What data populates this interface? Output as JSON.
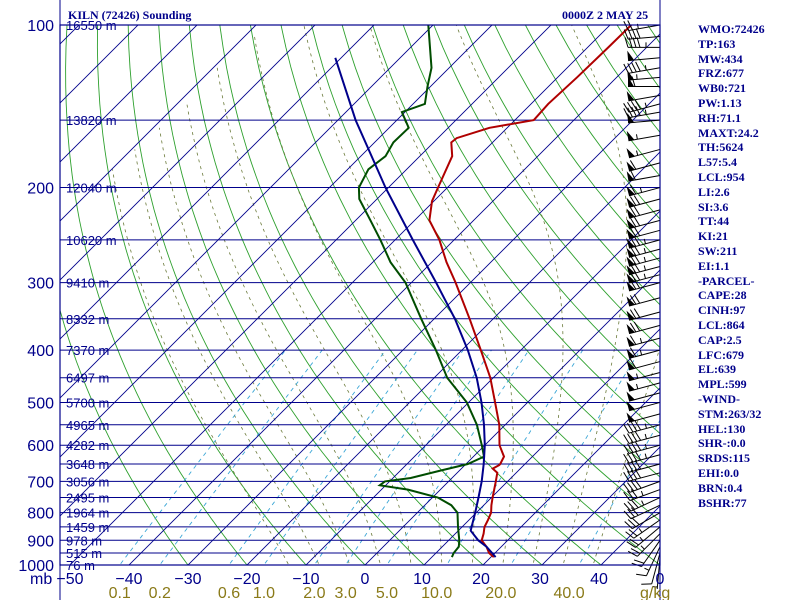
{
  "header": {
    "station": "KILN (72426) Sounding",
    "time": "0000Z  2 MAY 25"
  },
  "stats": [
    "WMO:72426",
    "TP:163",
    "MW:434",
    "FRZ:677",
    "WB0:721",
    "PW:1.13",
    "RH:71.1",
    "MAXT:24.2",
    "TH:5624",
    "L57:5.4",
    "LCL:954",
    "LI:2.6",
    "SI:3.6",
    "TT:44",
    "KI:21",
    "SW:211",
    "EI:1.1",
    "-PARCEL-",
    "CAPE:28",
    "CINH:97",
    "LCL:864",
    "CAP:2.5",
    "LFC:679",
    "EL:639",
    "MPL:599",
    "-WIND-",
    "STM:263/32",
    "HEL:130",
    "SHR-:0.0",
    "SRDS:115",
    "EHI:0.0",
    "BRN:0.4",
    "BSHR:77"
  ],
  "chart_data": {
    "type": "line",
    "title": "",
    "xlabel": "",
    "ylabel": "mb",
    "x_unit": "g/kg",
    "y_scale": "log-pressure",
    "ylim": [
      1000,
      100
    ],
    "xlim": [
      -50,
      50
    ],
    "pressure_ticks": [
      100,
      200,
      300,
      400,
      500,
      600,
      700,
      800,
      900,
      1000
    ],
    "temperature_ticks": [
      -50,
      -40,
      -30,
      -20,
      -10,
      0,
      10,
      20,
      30,
      40
    ],
    "mixing_ratio_ticks": [
      "0.1",
      "0.2",
      "0.6",
      "1.0",
      "2.0",
      "3.0",
      "5.0",
      "10.0",
      "20.0",
      "40.0"
    ],
    "mixing_ratio_values": [
      0.1,
      0.2,
      0.6,
      1.0,
      2.0,
      3.0,
      5.0,
      10.0,
      20.0,
      40.0
    ],
    "height_labels": [
      {
        "p": 100,
        "label": "16550 m"
      },
      {
        "p": 150,
        "label": "13820 m"
      },
      {
        "p": 200,
        "label": "12040 m"
      },
      {
        "p": 250,
        "label": "10620 m"
      },
      {
        "p": 300,
        "label": "9410 m"
      },
      {
        "p": 350,
        "label": "8332 m"
      },
      {
        "p": 400,
        "label": "7370 m"
      },
      {
        "p": 450,
        "label": "6497 m"
      },
      {
        "p": 500,
        "label": "5700 m"
      },
      {
        "p": 550,
        "label": "4965 m"
      },
      {
        "p": 600,
        "label": "4282 m"
      },
      {
        "p": 650,
        "label": "3648 m"
      },
      {
        "p": 700,
        "label": "3056 m"
      },
      {
        "p": 750,
        "label": "2495 m"
      },
      {
        "p": 800,
        "label": "1964 m"
      },
      {
        "p": 850,
        "label": "1459 m"
      },
      {
        "p": 900,
        "label": "978 m"
      },
      {
        "p": 950,
        "label": "515 m"
      },
      {
        "p": 1000,
        "label": "76 m"
      }
    ],
    "legend": "none",
    "grid": true,
    "series": [
      {
        "color": "#b00000",
        "values": [
          {
            "p": 967,
            "t": 20.5
          },
          {
            "p": 950,
            "t": 19.0
          },
          {
            "p": 925,
            "t": 17.5
          },
          {
            "p": 900,
            "t": 15.6
          },
          {
            "p": 875,
            "t": 14.8
          },
          {
            "p": 850,
            "t": 13.8
          },
          {
            "p": 825,
            "t": 13.2
          },
          {
            "p": 800,
            "t": 12.5
          },
          {
            "p": 775,
            "t": 11.3
          },
          {
            "p": 750,
            "t": 10.2
          },
          {
            "p": 700,
            "t": 8.0
          },
          {
            "p": 675,
            "t": 6.8
          },
          {
            "p": 663,
            "t": 5.3
          },
          {
            "p": 653,
            "t": 5.8
          },
          {
            "p": 650,
            "t": 5.8
          },
          {
            "p": 630,
            "t": 5.2
          },
          {
            "p": 600,
            "t": 2.5
          },
          {
            "p": 550,
            "t": -1.0
          },
          {
            "p": 500,
            "t": -5.5
          },
          {
            "p": 450,
            "t": -10.5
          },
          {
            "p": 400,
            "t": -16.8
          },
          {
            "p": 350,
            "t": -24.0
          },
          {
            "p": 300,
            "t": -32.5
          },
          {
            "p": 275,
            "t": -37.5
          },
          {
            "p": 250,
            "t": -42.5
          },
          {
            "p": 230,
            "t": -47.5
          },
          {
            "p": 212,
            "t": -50.3
          },
          {
            "p": 200,
            "t": -51.6
          },
          {
            "p": 175,
            "t": -54.5
          },
          {
            "p": 165,
            "t": -57.0
          },
          {
            "p": 162,
            "t": -56.8
          },
          {
            "p": 155,
            "t": -53.0
          },
          {
            "p": 150,
            "t": -46.8
          },
          {
            "p": 140,
            "t": -47.1
          },
          {
            "p": 125,
            "t": -46.7
          },
          {
            "p": 110,
            "t": -46.5
          },
          {
            "p": 100,
            "t": -46.4
          }
        ]
      },
      {
        "color": "#004d00",
        "values": [
          {
            "p": 967,
            "t": 13.4
          },
          {
            "p": 950,
            "t": 13.0
          },
          {
            "p": 925,
            "t": 12.8
          },
          {
            "p": 900,
            "t": 11.8
          },
          {
            "p": 850,
            "t": 9.3
          },
          {
            "p": 800,
            "t": 6.8
          },
          {
            "p": 775,
            "t": 4.5
          },
          {
            "p": 750,
            "t": 0.9
          },
          {
            "p": 725,
            "t": -5.5
          },
          {
            "p": 712,
            "t": -11.0
          },
          {
            "p": 700,
            "t": -10.8
          },
          {
            "p": 690,
            "t": -7.0
          },
          {
            "p": 670,
            "t": -3.5
          },
          {
            "p": 650,
            "t": 0.3
          },
          {
            "p": 630,
            "t": 1.8
          },
          {
            "p": 600,
            "t": -0.5
          },
          {
            "p": 550,
            "t": -4.8
          },
          {
            "p": 500,
            "t": -10.3
          },
          {
            "p": 450,
            "t": -17.8
          },
          {
            "p": 400,
            "t": -24.4
          },
          {
            "p": 350,
            "t": -32.2
          },
          {
            "p": 300,
            "t": -41.0
          },
          {
            "p": 275,
            "t": -47.0
          },
          {
            "p": 250,
            "t": -52.5
          },
          {
            "p": 230,
            "t": -57.5
          },
          {
            "p": 210,
            "t": -63.0
          },
          {
            "p": 200,
            "t": -65.0
          },
          {
            "p": 185,
            "t": -66.5
          },
          {
            "p": 175,
            "t": -65.8
          },
          {
            "p": 165,
            "t": -66.8
          },
          {
            "p": 155,
            "t": -66.7
          },
          {
            "p": 145,
            "t": -70.5
          },
          {
            "p": 140,
            "t": -68.0
          },
          {
            "p": 130,
            "t": -70.5
          },
          {
            "p": 120,
            "t": -73.0
          },
          {
            "p": 100,
            "t": -80.8
          }
        ]
      },
      {
        "color": "#00008b",
        "values": [
          {
            "p": 967,
            "t": 20.8
          },
          {
            "p": 950,
            "t": 19.5
          },
          {
            "p": 925,
            "t": 17.5
          },
          {
            "p": 900,
            "t": 15.0
          },
          {
            "p": 864,
            "t": 12.1
          },
          {
            "p": 850,
            "t": 11.6
          },
          {
            "p": 800,
            "t": 9.8
          },
          {
            "p": 750,
            "t": 7.8
          },
          {
            "p": 700,
            "t": 5.6
          },
          {
            "p": 650,
            "t": 3.0
          },
          {
            "p": 600,
            "t": 0.0
          },
          {
            "p": 550,
            "t": -3.6
          },
          {
            "p": 500,
            "t": -7.8
          },
          {
            "p": 450,
            "t": -12.8
          },
          {
            "p": 400,
            "t": -19.0
          },
          {
            "p": 350,
            "t": -26.5
          },
          {
            "p": 300,
            "t": -35.8
          },
          {
            "p": 250,
            "t": -47.0
          },
          {
            "p": 200,
            "t": -60.5
          },
          {
            "p": 150,
            "t": -77.0
          },
          {
            "p": 115,
            "t": -91.0
          }
        ]
      }
    ],
    "winds": {
      "pressures": [
        100,
        105,
        110,
        115,
        120,
        125,
        130,
        135,
        140,
        145,
        150,
        160,
        170,
        180,
        190,
        200,
        210,
        220,
        230,
        240,
        250,
        260,
        270,
        280,
        290,
        300,
        320,
        340,
        360,
        380,
        400,
        420,
        440,
        460,
        480,
        500,
        525,
        550,
        575,
        600,
        625,
        650,
        675,
        700,
        725,
        750,
        775,
        800,
        825,
        850,
        875,
        900,
        925,
        950,
        967
      ],
      "direction_deg": [
        260,
        265,
        270,
        265,
        260,
        265,
        270,
        260,
        255,
        260,
        265,
        260,
        255,
        255,
        260,
        255,
        255,
        255,
        255,
        255,
        255,
        255,
        255,
        255,
        255,
        255,
        255,
        255,
        255,
        255,
        255,
        255,
        255,
        255,
        255,
        255,
        255,
        255,
        255,
        255,
        255,
        255,
        255,
        250,
        250,
        245,
        245,
        240,
        235,
        230,
        225,
        215,
        205,
        195,
        185
      ],
      "speed_kt": [
        25,
        40,
        45,
        50,
        45,
        55,
        60,
        50,
        45,
        45,
        50,
        55,
        55,
        60,
        60,
        65,
        70,
        70,
        70,
        70,
        75,
        75,
        75,
        75,
        75,
        70,
        70,
        70,
        70,
        65,
        65,
        60,
        55,
        55,
        50,
        50,
        50,
        45,
        45,
        45,
        45,
        40,
        40,
        40,
        35,
        35,
        30,
        30,
        25,
        25,
        25,
        20,
        15,
        10,
        5
      ]
    }
  }
}
